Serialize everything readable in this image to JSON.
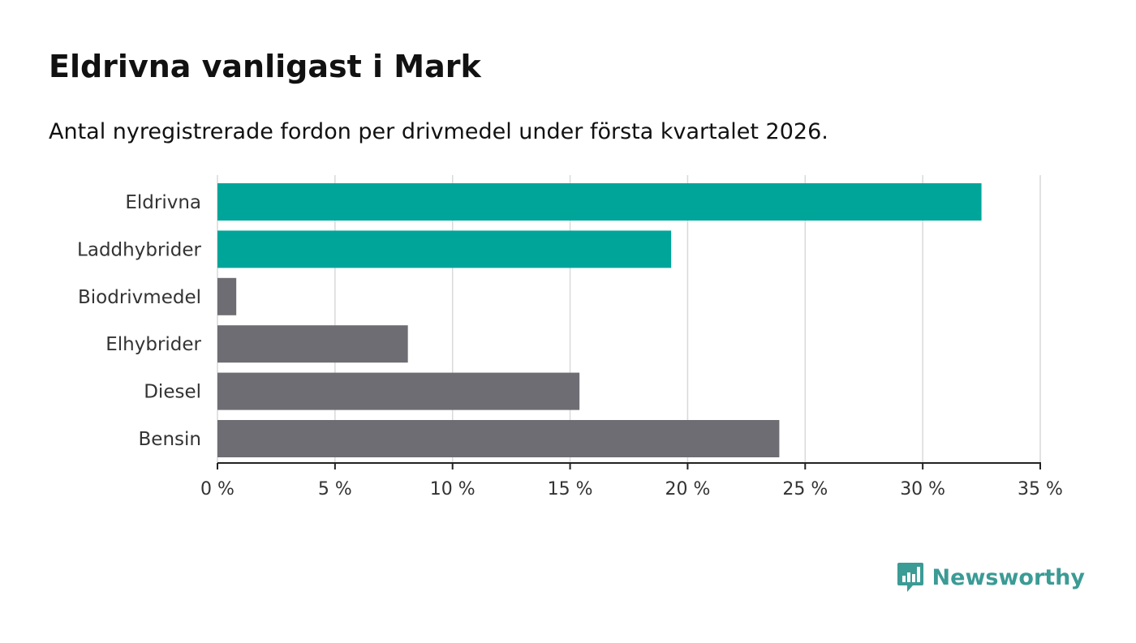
{
  "title": "Eldrivna vanligast i Mark",
  "subtitle": "Antal nyregistrerade fordon per drivmedel under första kvartalet 2026.",
  "brand": {
    "name": "Newsworthy",
    "icon": "newsworthy-logo-icon"
  },
  "colors": {
    "highlight": "#00a59a",
    "default": "#6e6d73",
    "grid": "#d9d9d9",
    "axis": "#222222",
    "brand": "#3b9b95"
  },
  "chart_data": {
    "type": "bar",
    "orientation": "horizontal",
    "categories": [
      "Eldrivna",
      "Laddhybrider",
      "Biodrivmedel",
      "Elhybrider",
      "Diesel",
      "Bensin"
    ],
    "values": [
      32.5,
      19.3,
      0.8,
      8.1,
      15.4,
      23.9
    ],
    "highlighted": [
      true,
      true,
      false,
      false,
      false,
      false
    ],
    "xlim": [
      0,
      35
    ],
    "xticks": [
      0,
      5,
      10,
      15,
      20,
      25,
      30,
      35
    ],
    "xtick_labels": [
      "0 %",
      "5 %",
      "10 %",
      "15 %",
      "20 %",
      "25 %",
      "30 %",
      "35 %"
    ],
    "grid": "vertical"
  }
}
